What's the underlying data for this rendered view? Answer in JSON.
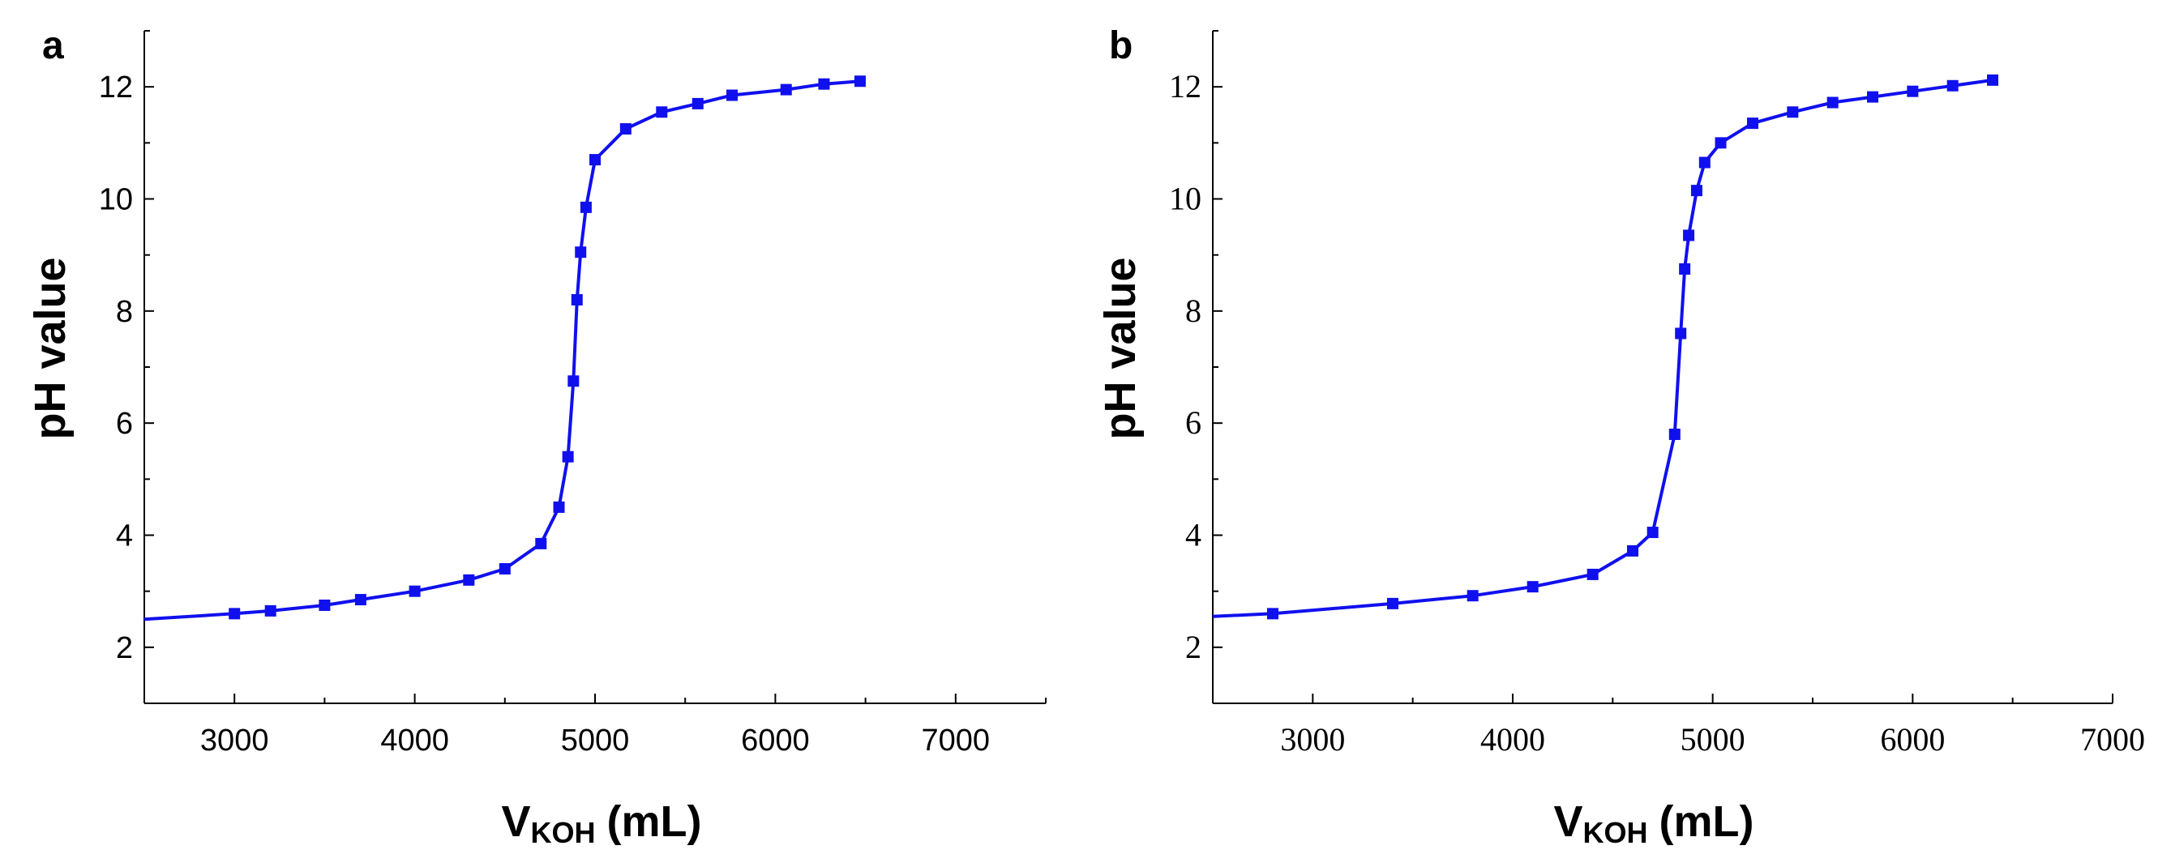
{
  "chart_data": [
    {
      "type": "line",
      "panel_label": "a",
      "xlabel_main": "V",
      "xlabel_sub": "KOH",
      "xlabel_unit": "(mL)",
      "ylabel": "pH value",
      "xlim": [
        2500,
        7500
      ],
      "ylim": [
        1,
        13
      ],
      "xticks": [
        3000,
        4000,
        5000,
        6000,
        7000
      ],
      "yticks": [
        2,
        4,
        6,
        8,
        10,
        12
      ],
      "grid": false,
      "series": [
        {
          "name": "pH",
          "color": "#1010ee",
          "marker": "square",
          "x": [
            2500,
            3000,
            3200,
            3500,
            3700,
            4000,
            4300,
            4500,
            4700,
            4800,
            4850,
            4880,
            4900,
            4920,
            4950,
            5000,
            5170,
            5370,
            5570,
            5760,
            6060,
            6270,
            6470
          ],
          "y": [
            2.5,
            2.6,
            2.65,
            2.75,
            2.85,
            3.0,
            3.2,
            3.4,
            3.85,
            4.5,
            5.4,
            6.75,
            8.2,
            9.05,
            9.85,
            10.7,
            11.25,
            11.55,
            11.7,
            11.85,
            11.95,
            12.05,
            12.1
          ]
        }
      ]
    },
    {
      "type": "line",
      "panel_label": "b",
      "xlabel_main": "V",
      "xlabel_sub": "KOH",
      "xlabel_unit": "(mL)",
      "ylabel": "pH value",
      "xlim": [
        2500,
        7000
      ],
      "ylim": [
        1,
        13
      ],
      "xticks": [
        3000,
        4000,
        5000,
        6000,
        7000
      ],
      "yticks": [
        2,
        4,
        6,
        8,
        10,
        12
      ],
      "grid": false,
      "series": [
        {
          "name": "pH",
          "color": "#1010ee",
          "marker": "square",
          "x": [
            2500,
            2800,
            3400,
            3800,
            4100,
            4400,
            4600,
            4700,
            4810,
            4840,
            4860,
            4880,
            4920,
            4960,
            5040,
            5200,
            5400,
            5600,
            5800,
            6000,
            6200,
            6400
          ],
          "y": [
            2.55,
            2.6,
            2.78,
            2.92,
            3.08,
            3.3,
            3.72,
            4.05,
            5.8,
            7.6,
            8.75,
            9.35,
            10.15,
            10.65,
            11.0,
            11.35,
            11.55,
            11.72,
            11.82,
            11.92,
            12.02,
            12.12
          ]
        }
      ]
    }
  ]
}
